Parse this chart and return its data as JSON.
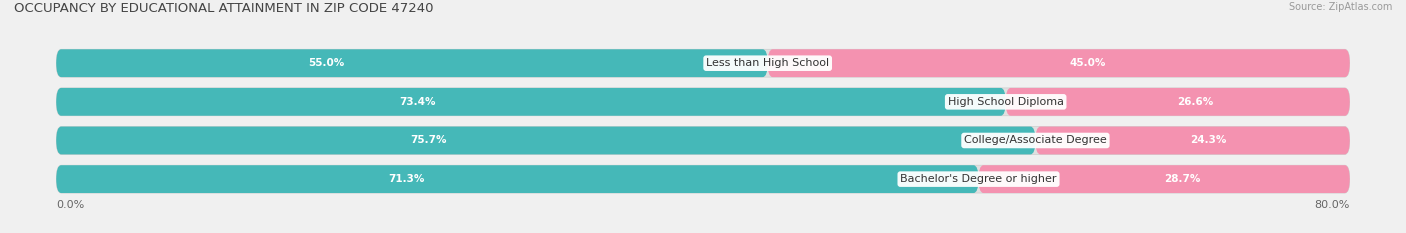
{
  "title": "OCCUPANCY BY EDUCATIONAL ATTAINMENT IN ZIP CODE 47240",
  "source": "Source: ZipAtlas.com",
  "categories": [
    "Less than High School",
    "High School Diploma",
    "College/Associate Degree",
    "Bachelor's Degree or higher"
  ],
  "owner_values": [
    55.0,
    73.4,
    75.7,
    71.3
  ],
  "renter_values": [
    45.0,
    26.6,
    24.3,
    28.7
  ],
  "owner_color": "#45B8B8",
  "renter_color": "#F492B0",
  "background_color": "#f0f0f0",
  "bar_bg_color": "#e0e0e0",
  "x_min": 0.0,
  "x_max": 100.0,
  "x_left_label": "0.0%",
  "x_right_label": "80.0%",
  "title_fontsize": 9.5,
  "label_fontsize": 8,
  "value_fontsize": 7.5,
  "legend_fontsize": 8,
  "source_fontsize": 7
}
